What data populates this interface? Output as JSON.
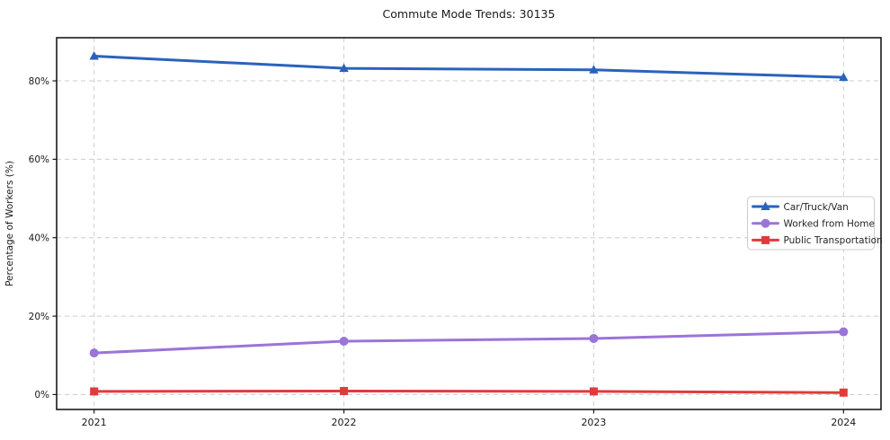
{
  "figure": {
    "background": "#ffffff",
    "plot_border_color": "#1a1a1a",
    "grid_color": "#cccccc"
  },
  "chart_data": {
    "type": "line",
    "title": "Commute Mode Trends: 30135",
    "xlabel": "",
    "ylabel": "Percentage of Workers (%)",
    "x": [
      2021,
      2022,
      2023,
      2024
    ],
    "x_tick_labels": [
      "2021",
      "2022",
      "2023",
      "2024"
    ],
    "y_ticks": [
      0,
      20,
      40,
      60,
      80
    ],
    "y_tick_labels": [
      "0%",
      "20%",
      "40%",
      "60%",
      "80%"
    ],
    "xlim": [
      2020.85,
      2024.15
    ],
    "ylim": [
      -3.8,
      91.0
    ],
    "grid": true,
    "grid_style": "dashed",
    "legend_position": "center right",
    "series": [
      {
        "name": "Car/Truck/Van",
        "color": "#2b62bd",
        "marker": "triangle",
        "values": [
          86.3,
          83.2,
          82.8,
          80.9
        ]
      },
      {
        "name": "Worked from Home",
        "color": "#9b74d8",
        "marker": "circle",
        "values": [
          10.6,
          13.6,
          14.3,
          16.0
        ]
      },
      {
        "name": "Public Transportation",
        "color": "#e03b3b",
        "marker": "square",
        "values": [
          0.8,
          0.9,
          0.8,
          0.5
        ]
      }
    ]
  }
}
